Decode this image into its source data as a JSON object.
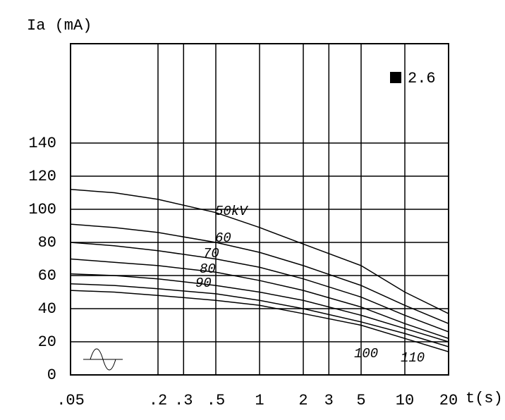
{
  "chart_data": {
    "type": "line",
    "y_label": "Ia (mA)",
    "x_label": "t(s)",
    "legend_text": "2.6",
    "x": [
      0.05,
      0.1,
      0.2,
      0.5,
      1,
      2,
      5,
      10,
      20
    ],
    "xscale": "log",
    "xlim": [
      0.05,
      20
    ],
    "xticks": [
      {
        "value": 0.05,
        "label": ".05"
      },
      {
        "value": 0.2,
        "label": ".2"
      },
      {
        "value": 0.3,
        "label": ".3"
      },
      {
        "value": 0.5,
        "label": ".5"
      },
      1,
      2,
      3,
      5,
      10,
      20
    ],
    "ylim": [
      0,
      200
    ],
    "yticks": [
      0,
      20,
      40,
      60,
      80,
      100,
      120,
      140
    ],
    "grid": true,
    "series": [
      {
        "name": "50kV",
        "color": "#000000",
        "values": [
          112,
          110,
          106,
          98,
          89,
          79,
          66,
          50,
          37
        ]
      },
      {
        "name": "60",
        "color": "#000000",
        "values": [
          91,
          89,
          86,
          80,
          74,
          66,
          54,
          42,
          31
        ]
      },
      {
        "name": "70",
        "color": "#000000",
        "values": [
          80,
          78,
          75,
          70,
          65,
          58,
          47,
          36,
          26
        ]
      },
      {
        "name": "80",
        "color": "#000000",
        "values": [
          70,
          68,
          66,
          62,
          57,
          51,
          41,
          31,
          22
        ]
      },
      {
        "name": "90",
        "color": "#000000",
        "values": [
          61,
          60,
          58,
          54,
          50,
          45,
          36,
          28,
          20
        ]
      },
      {
        "name": "100",
        "color": "#000000",
        "values": [
          55,
          54,
          52,
          49,
          45,
          40,
          32,
          25,
          17
        ]
      },
      {
        "name": "110",
        "color": "#000000",
        "values": [
          51,
          50,
          48,
          45,
          42,
          37,
          30,
          22,
          14
        ]
      }
    ]
  }
}
